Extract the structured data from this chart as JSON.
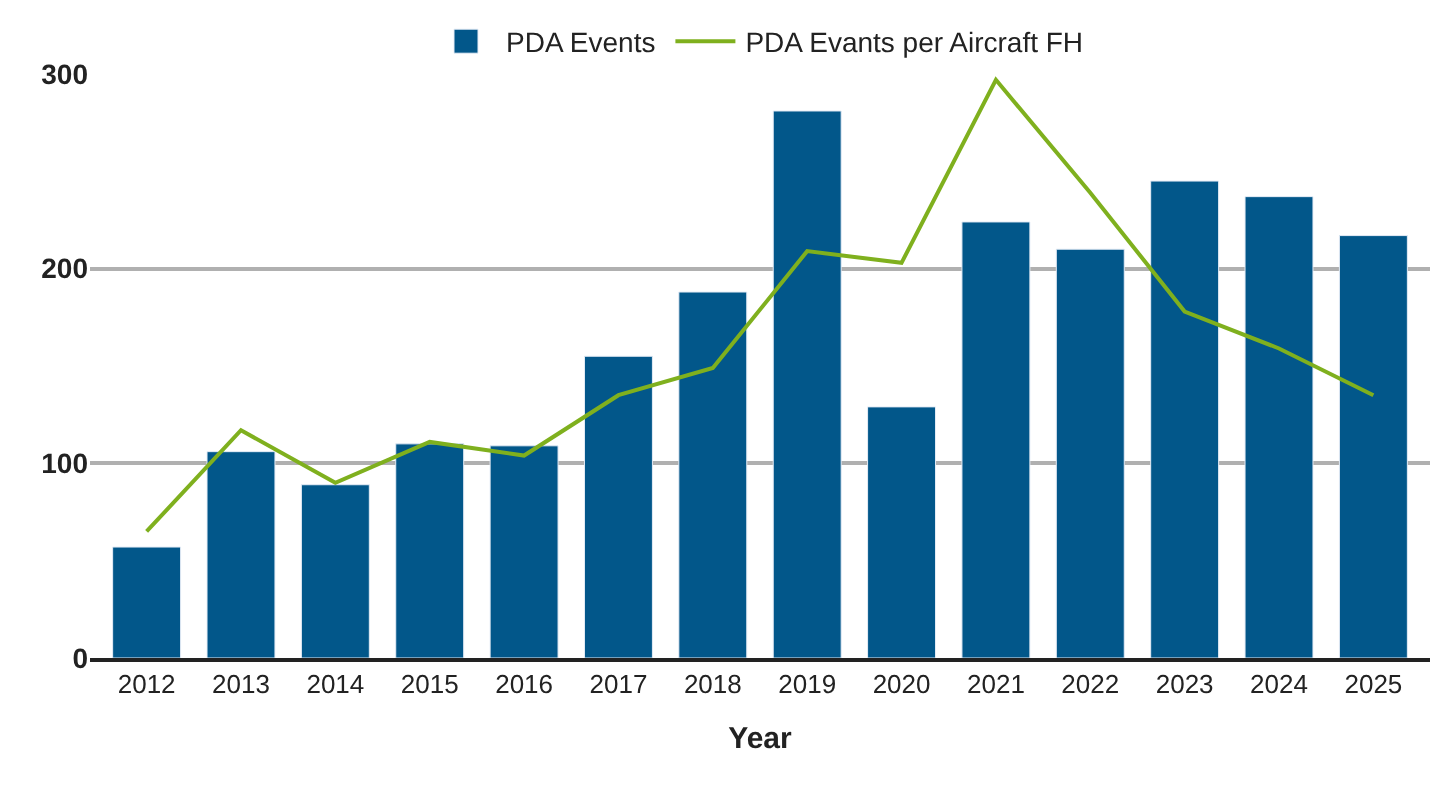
{
  "chart_data": {
    "type": "bar",
    "xlabel": "Year",
    "categories": [
      "2012",
      "2013",
      "2014",
      "2015",
      "2016",
      "2017",
      "2018",
      "2019",
      "2020",
      "2021",
      "2022",
      "2023",
      "2024",
      "2025"
    ],
    "series": [
      {
        "name": "PDA Events",
        "color": "#02578a",
        "values": [
          57,
          106,
          89,
          110,
          109,
          155,
          188,
          281,
          129,
          224,
          210,
          245,
          237,
          217
        ]
      },
      {
        "name": "PDA Evants per Aircraft FH",
        "type": "line",
        "color": "#7fb01e",
        "values": [
          65,
          117,
          90,
          111,
          104,
          135,
          149,
          209,
          203,
          297,
          239,
          178,
          159,
          135
        ]
      }
    ],
    "ylim": [
      0,
      300
    ],
    "yticks": [
      0,
      100,
      200,
      300
    ],
    "grid": "y",
    "legend": "top",
    "marker": "none"
  }
}
